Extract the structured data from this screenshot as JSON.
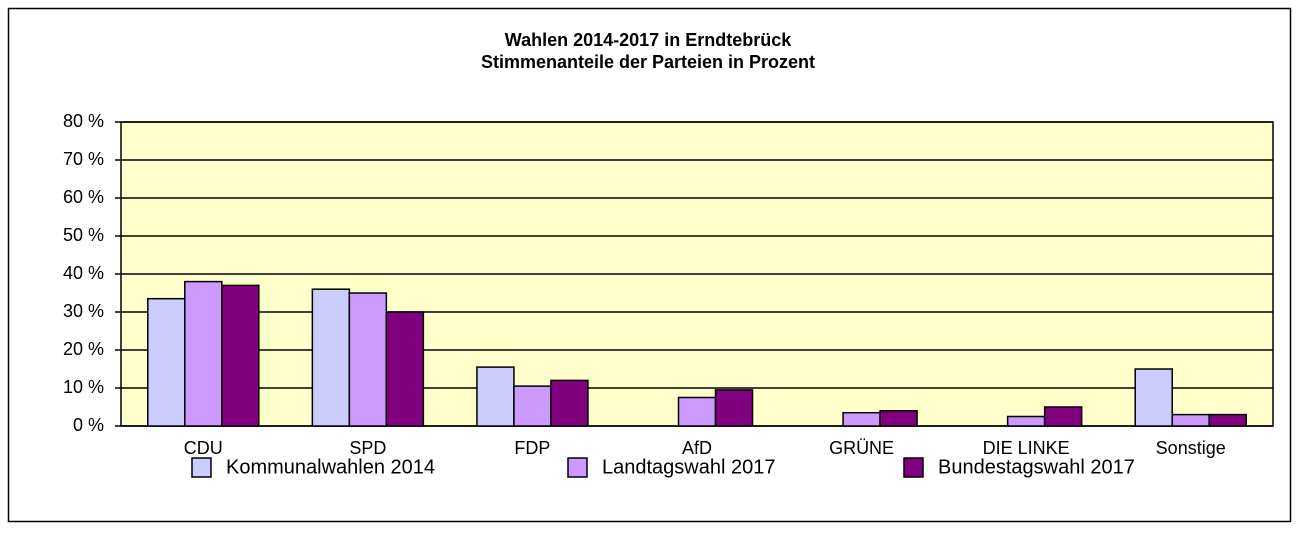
{
  "chart_data": {
    "type": "bar",
    "title": [
      "Wahlen 2014-2017 in Erndtebrück",
      "Stimmenanteile der Parteien in Prozent"
    ],
    "categories": [
      "CDU",
      "SPD",
      "FDP",
      "AfD",
      "GRÜNE",
      "DIE LINKE",
      "Sonstige"
    ],
    "series": [
      {
        "name": "Kommunalwahlen 2014",
        "color": "#ccccff",
        "values": [
          33.5,
          36,
          15.5,
          null,
          null,
          null,
          15
        ]
      },
      {
        "name": "Landtagswahl 2017",
        "color": "#cc99ff",
        "values": [
          38,
          35,
          10.5,
          7.5,
          3.5,
          2.5,
          3
        ]
      },
      {
        "name": "Bundestagswahl 2017",
        "color": "#800080",
        "values": [
          37,
          30,
          12,
          9.5,
          4,
          5,
          3
        ]
      }
    ],
    "ylim": [
      0,
      80
    ],
    "yticks": [
      {
        "value": 0,
        "label": "0 %"
      },
      {
        "value": 10,
        "label": "10 %"
      },
      {
        "value": 20,
        "label": "20 %"
      },
      {
        "value": 30,
        "label": "30 %"
      },
      {
        "value": 40,
        "label": "40 %"
      },
      {
        "value": 50,
        "label": "50 %"
      },
      {
        "value": 60,
        "label": "60 %"
      },
      {
        "value": 70,
        "label": "70 %"
      },
      {
        "value": 80,
        "label": "80 %"
      }
    ],
    "grid": true,
    "plot_background": "#ffffcc",
    "legend": "bottom"
  }
}
